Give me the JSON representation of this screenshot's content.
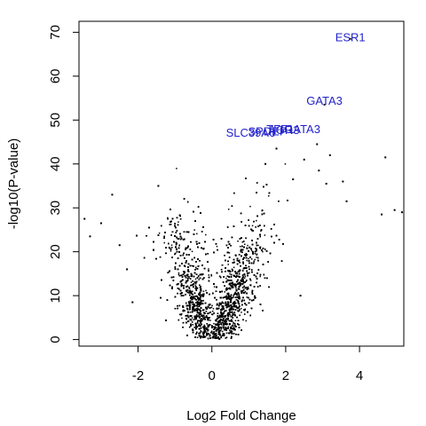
{
  "chart_data": {
    "type": "scatter",
    "title": "",
    "xlabel": "Log2 Fold Change",
    "ylabel": "-log10(P-value)",
    "xlim": [
      -3.6,
      5.2
    ],
    "ylim": [
      -1.5,
      72.5
    ],
    "x_ticks": [
      -2,
      0,
      2,
      4
    ],
    "y_ticks": [
      0,
      10,
      20,
      30,
      40,
      50,
      60,
      70
    ],
    "grid": false,
    "point_color": "#000000",
    "label_color": "#2222cc",
    "labeled_points": [
      {
        "label": "ESR1",
        "x": 3.75,
        "y": 69.0
      },
      {
        "label": "GATA3",
        "x": 3.05,
        "y": 54.5
      },
      {
        "label": "TFF1",
        "x": 1.85,
        "y": 48.0
      },
      {
        "label": "GATA3",
        "x": 2.45,
        "y": 48.0
      },
      {
        "label": "SPDEF",
        "x": 1.5,
        "y": 47.5
      },
      {
        "label": "SLC39A6",
        "x": 1.05,
        "y": 47.2
      },
      {
        "label": "AGR3",
        "x": 1.95,
        "y": 47.8
      }
    ],
    "notable_points": [
      {
        "x": -3.45,
        "y": 27.5
      },
      {
        "x": -3.3,
        "y": 23.5
      },
      {
        "x": -3.0,
        "y": 26.5
      },
      {
        "x": -2.7,
        "y": 33.0
      },
      {
        "x": -2.5,
        "y": 21.5
      },
      {
        "x": -2.3,
        "y": 16.0
      },
      {
        "x": -1.45,
        "y": 35.0
      },
      {
        "x": -2.15,
        "y": 8.5
      },
      {
        "x": 4.7,
        "y": 41.5
      },
      {
        "x": 4.95,
        "y": 29.5
      },
      {
        "x": 5.15,
        "y": 29.0
      },
      {
        "x": 4.6,
        "y": 28.5
      },
      {
        "x": 3.55,
        "y": 36.0
      },
      {
        "x": 3.65,
        "y": 31.5
      },
      {
        "x": 2.85,
        "y": 44.5
      },
      {
        "x": 3.2,
        "y": 42.0
      },
      {
        "x": 2.5,
        "y": 41.0
      },
      {
        "x": 1.75,
        "y": 43.5
      },
      {
        "x": 1.45,
        "y": 40.0
      },
      {
        "x": 2.9,
        "y": 38.5
      },
      {
        "x": 2.4,
        "y": 10.0
      },
      {
        "x": 3.1,
        "y": 35.5
      },
      {
        "x": 2.2,
        "y": 36.5
      },
      {
        "x": 3.75,
        "y": 68.5
      },
      {
        "x": 3.05,
        "y": 53.5
      }
    ],
    "bulk_cloud": {
      "n_points": 9000,
      "x_spread_at_y0": 0.15,
      "x_spread_growth_per_unit_y": 0.05,
      "positive_shift": 0.35,
      "max_y": 40
    }
  }
}
